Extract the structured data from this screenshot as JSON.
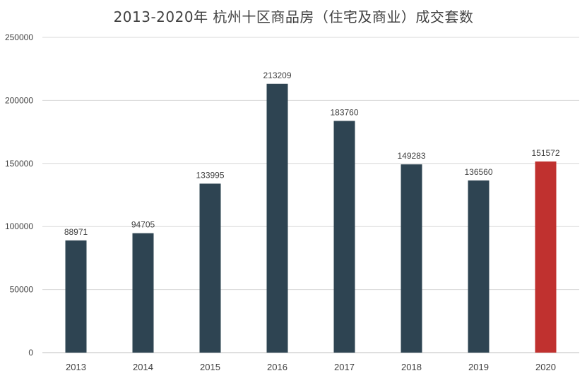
{
  "chart_data": {
    "type": "bar",
    "title": "2013-2020年 杭州十区商品房（住宅及商业）成交套数",
    "xlabel": "",
    "ylabel": "",
    "categories": [
      "2013",
      "2014",
      "2015",
      "2016",
      "2017",
      "2018",
      "2019",
      "2020"
    ],
    "values": [
      88971,
      94705,
      133995,
      213209,
      183760,
      149283,
      136560,
      151572
    ],
    "ylim": [
      0,
      250000
    ],
    "yticks": [
      0,
      50000,
      100000,
      150000,
      200000,
      250000
    ],
    "grid": true,
    "legend": "none",
    "colors": {
      "default_bar": "#2e4452",
      "highlight_bar": "#c0312f",
      "gridline": "#d9d9d9"
    },
    "highlight_index": 7
  }
}
